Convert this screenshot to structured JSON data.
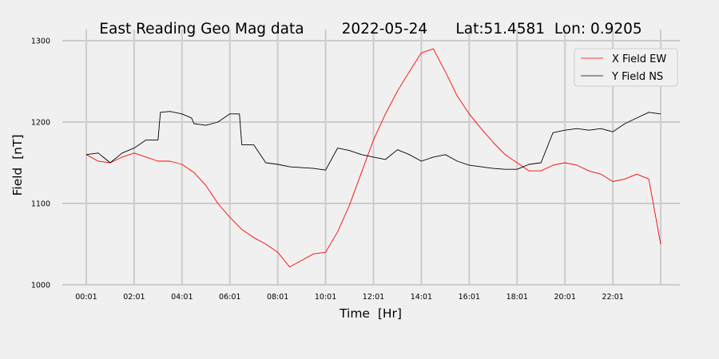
{
  "chart_data": {
    "type": "line",
    "title": "East Reading Geo Mag data        2022-05-24      Lat:51.4581  Lon: 0.9205",
    "xlabel": "Time  [Hr]",
    "ylabel": "Field  [nT]",
    "x_tick_labels": [
      "00:01",
      "02:01",
      "04:01",
      "06:01",
      "08:01",
      "10:01",
      "12:01",
      "14:01",
      "16:01",
      "18:01",
      "20:01",
      "22:01"
    ],
    "x_ticks_hours": [
      0,
      2,
      4,
      6,
      8,
      10,
      12,
      14,
      16,
      18,
      20,
      22,
      24
    ],
    "xlim_hours": [
      -1,
      24.8
    ],
    "y_ticks": [
      1000,
      1100,
      1200,
      1300
    ],
    "ylim": [
      1000,
      1300
    ],
    "grid": true,
    "legend_position": "top-right",
    "series": [
      {
        "name": "X Field EW",
        "color": "#ff0000",
        "x": [
          0,
          0.5,
          1,
          1.5,
          2,
          2.5,
          3,
          3.5,
          4,
          4.5,
          5,
          5.5,
          6,
          6.5,
          7,
          7.5,
          8,
          8.5,
          9,
          9.5,
          10,
          10.5,
          11,
          11.5,
          12,
          12.5,
          13,
          13.5,
          14,
          14.5,
          15,
          15.5,
          16,
          16.5,
          17,
          17.5,
          18,
          18.5,
          19,
          19.5,
          20,
          20.5,
          21,
          21.5,
          22,
          22.5,
          23,
          23.5,
          24
        ],
        "values": [
          1160,
          1152,
          1150,
          1157,
          1162,
          1157,
          1152,
          1152,
          1148,
          1138,
          1122,
          1100,
          1083,
          1068,
          1058,
          1050,
          1040,
          1022,
          1030,
          1038,
          1040,
          1065,
          1098,
          1138,
          1178,
          1210,
          1238,
          1262,
          1285,
          1290,
          1262,
          1232,
          1210,
          1192,
          1175,
          1160,
          1150,
          1140,
          1140,
          1147,
          1150,
          1147,
          1140,
          1136,
          1127,
          1130,
          1136,
          1130,
          1050
        ]
      },
      {
        "name": "Y Field NS",
        "color": "#000000",
        "x": [
          0,
          0.5,
          1,
          1.5,
          2,
          2.5,
          3,
          3.1,
          3.5,
          4,
          4.4,
          4.5,
          5,
          5.5,
          6,
          6.4,
          6.5,
          7,
          7.5,
          8,
          8.5,
          9,
          9.5,
          10,
          10.5,
          11,
          11.5,
          12,
          12.5,
          13,
          13.5,
          14,
          14.5,
          15,
          15.5,
          16,
          16.5,
          17,
          17.5,
          18,
          18.5,
          19,
          19.5,
          20,
          20.5,
          21,
          21.5,
          22,
          22.5,
          23,
          23.5,
          24
        ],
        "values": [
          1160,
          1162,
          1150,
          1162,
          1168,
          1178,
          1178,
          1212,
          1213,
          1210,
          1205,
          1198,
          1196,
          1200,
          1210,
          1210,
          1172,
          1172,
          1150,
          1148,
          1145,
          1144,
          1143,
          1141,
          1168,
          1165,
          1160,
          1157,
          1154,
          1166,
          1160,
          1152,
          1157,
          1160,
          1152,
          1147,
          1145,
          1143,
          1142,
          1142,
          1148,
          1150,
          1187,
          1190,
          1192,
          1190,
          1192,
          1188,
          1198,
          1205,
          1212,
          1210
        ]
      }
    ]
  }
}
